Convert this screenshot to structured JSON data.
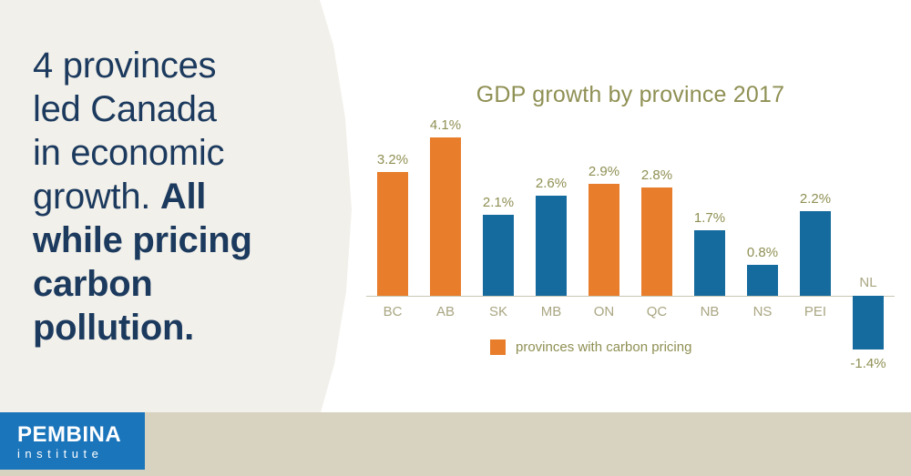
{
  "headline": {
    "regular_lines": "4 provinces\nled Canada\nin economic\ngrowth. ",
    "bold_lines": "All\nwhile pricing\ncarbon\npollution."
  },
  "chart_data": {
    "type": "bar",
    "title": "GDP growth by province 2017",
    "categories": [
      "BC",
      "AB",
      "SK",
      "MB",
      "ON",
      "QC",
      "NB",
      "NS",
      "PEI",
      "NL"
    ],
    "values": [
      3.2,
      4.1,
      2.1,
      2.6,
      2.9,
      2.8,
      1.7,
      0.8,
      2.2,
      -1.4
    ],
    "value_labels": [
      "3.2%",
      "4.1%",
      "2.1%",
      "2.6%",
      "2.9%",
      "2.8%",
      "1.7%",
      "0.8%",
      "2.2%",
      "-1.4%"
    ],
    "unit": "%",
    "baseline": 0,
    "grid": false,
    "carbon_pricing_provinces": [
      "BC",
      "AB",
      "ON",
      "QC"
    ],
    "legend": [
      {
        "label": "provinces with carbon pricing",
        "color": "#e87d2b"
      }
    ],
    "legend_position": "bottom",
    "series_colors": {
      "carbon_pricing": "#e87d2b",
      "other": "#156a9e"
    }
  },
  "colors": {
    "panel_cream": "#f2f0ea",
    "headline_navy": "#1c3a5e",
    "olive_text": "#8f9054",
    "bar_orange": "#e87d2b",
    "bar_blue": "#156a9e",
    "band_tan": "#d7d3c0",
    "logo_blue": "#1b75bb"
  },
  "logo": {
    "name": "PEMBINA",
    "subtitle": "institute"
  }
}
